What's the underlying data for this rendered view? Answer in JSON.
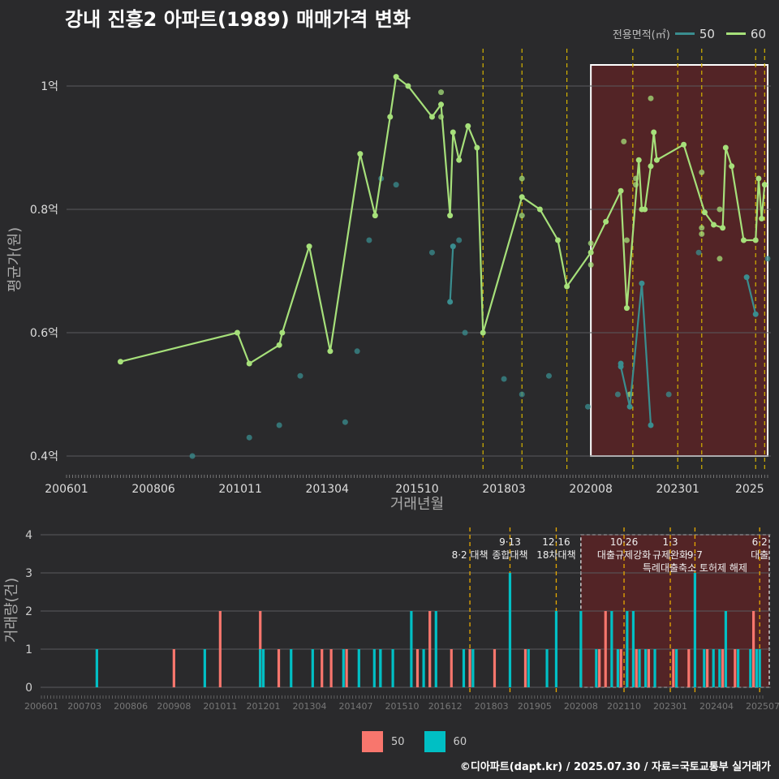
{
  "title": "강내 진흥2 아파트(1989) 매매가격 변화",
  "legend_top": {
    "title": "전용면적(㎡)",
    "items": [
      {
        "label": "50",
        "color": "#3a8d8f"
      },
      {
        "label": "60",
        "color": "#a6e07a"
      }
    ]
  },
  "legend_bottom": {
    "items": [
      {
        "label": "50",
        "color": "#f8766d"
      },
      {
        "label": "60",
        "color": "#00bfc4"
      }
    ]
  },
  "footer": "©디아파트(dapt.kr) / 2025.07.30 / 자료=국토교통부 실거래가",
  "chart_data": [
    {
      "type": "line",
      "xlabel": "거래년월",
      "ylabel": "평균가(원)",
      "x_ticks": [
        "200601",
        "200806",
        "201011",
        "201304",
        "201510",
        "201803",
        "202008",
        "202301",
        "2025"
      ],
      "y_ticks": [
        "0.4억",
        "0.6억",
        "0.8억",
        "1억"
      ],
      "ylim": [
        0.38,
        1.06
      ],
      "xlim": [
        "2006-01",
        "2025-07"
      ],
      "highlight_range": [
        "2020-08",
        "2025-07"
      ],
      "policy_lines": [
        "2017-08",
        "2018-09",
        "2019-12",
        "2021-10",
        "2023-01",
        "2023-09",
        "2025-03",
        "2025-06"
      ],
      "series": [
        {
          "name": "60",
          "color": "#a6e07a",
          "line": [
            [
              "2007-07",
              0.553
            ],
            [
              "2010-10",
              0.6
            ],
            [
              "2011-02",
              0.55
            ],
            [
              "2011-12",
              0.58
            ],
            [
              "2012-01",
              0.6
            ],
            [
              "2012-10",
              0.74
            ],
            [
              "2013-05",
              0.57
            ],
            [
              "2014-03",
              0.89
            ],
            [
              "2014-08",
              0.79
            ],
            [
              "2015-01",
              0.95
            ],
            [
              "2015-03",
              1.015
            ],
            [
              "2015-07",
              1.0
            ],
            [
              "2016-03",
              0.95
            ],
            [
              "2016-06",
              0.97
            ],
            [
              "2016-09",
              0.79
            ],
            [
              "2016-10",
              0.925
            ],
            [
              "2016-12",
              0.88
            ],
            [
              "2017-03",
              0.935
            ],
            [
              "2017-06",
              0.9
            ],
            [
              "2017-08",
              0.6
            ],
            [
              "2018-09",
              0.82
            ],
            [
              "2019-03",
              0.8
            ],
            [
              "2019-09",
              0.75
            ],
            [
              "2019-12",
              0.675
            ],
            [
              "2020-08",
              0.73
            ],
            [
              "2021-01",
              0.78
            ],
            [
              "2021-06",
              0.83
            ],
            [
              "2021-08",
              0.64
            ],
            [
              "2021-12",
              0.88
            ],
            [
              "2022-01",
              0.8
            ],
            [
              "2022-02",
              0.8
            ],
            [
              "2022-04",
              0.87
            ],
            [
              "2022-05",
              0.925
            ],
            [
              "2022-06",
              0.88
            ],
            [
              "2023-03",
              0.905
            ],
            [
              "2023-10",
              0.795
            ],
            [
              "2024-01",
              0.775
            ],
            [
              "2024-04",
              0.77
            ],
            [
              "2024-05",
              0.9
            ],
            [
              "2024-07",
              0.87
            ],
            [
              "2024-11",
              0.75
            ],
            [
              "2025-03",
              0.75
            ],
            [
              "2025-04",
              0.85
            ],
            [
              "2025-05",
              0.785
            ],
            [
              "2025-06",
              0.84
            ]
          ],
          "points": [
            [
              "2016-06",
              0.99
            ],
            [
              "2016-06",
              0.95
            ],
            [
              "2018-09",
              0.85
            ],
            [
              "2018-09",
              0.79
            ],
            [
              "2020-08",
              0.745
            ],
            [
              "2020-08",
              0.71
            ],
            [
              "2021-07",
              0.91
            ],
            [
              "2021-08",
              0.75
            ],
            [
              "2021-09",
              0.5
            ],
            [
              "2021-11",
              0.84
            ],
            [
              "2021-11",
              0.85
            ],
            [
              "2022-04",
              0.98
            ],
            [
              "2023-09",
              0.86
            ],
            [
              "2023-09",
              0.77
            ],
            [
              "2023-09",
              0.76
            ],
            [
              "2024-03",
              0.72
            ],
            [
              "2024-03",
              0.8
            ]
          ]
        },
        {
          "name": "50",
          "color": "#3a8d8f",
          "line": [
            [
              "2016-09",
              0.65
            ],
            [
              "2016-10",
              0.74
            ],
            [
              "2021-06",
              0.55
            ],
            [
              "2021-06",
              0.545
            ],
            [
              "2021-09",
              0.48
            ],
            [
              "2022-01",
              0.68
            ],
            [
              "2022-04",
              0.45
            ],
            [
              "2024-12",
              0.69
            ],
            [
              "2025-03",
              0.63
            ]
          ],
          "points": [
            [
              "2009-07",
              0.4
            ],
            [
              "2011-02",
              0.43
            ],
            [
              "2011-12",
              0.45
            ],
            [
              "2012-07",
              0.53
            ],
            [
              "2013-10",
              0.455
            ],
            [
              "2014-02",
              0.57
            ],
            [
              "2014-06",
              0.75
            ],
            [
              "2014-10",
              0.85
            ],
            [
              "2015-03",
              0.84
            ],
            [
              "2016-03",
              0.73
            ],
            [
              "2017-02",
              0.6
            ],
            [
              "2016-12",
              0.75
            ],
            [
              "2018-03",
              0.525
            ],
            [
              "2018-09",
              0.5
            ],
            [
              "2019-06",
              0.53
            ],
            [
              "2020-07",
              0.48
            ],
            [
              "2021-05",
              0.5
            ],
            [
              "2022-10",
              0.5
            ],
            [
              "2023-08",
              0.73
            ],
            [
              "2025-07",
              0.72
            ]
          ]
        }
      ]
    },
    {
      "type": "bar",
      "ylabel": "거래량(건)",
      "x_ticks": [
        "200601",
        "200703",
        "200806",
        "200908",
        "201011",
        "201201",
        "201304",
        "201407",
        "201510",
        "201612",
        "201803",
        "201905",
        "202008",
        "202110",
        "202301",
        "202404",
        "202507"
      ],
      "y_ticks": [
        "0",
        "1",
        "2",
        "3",
        "4"
      ],
      "ylim": [
        0,
        4.2
      ],
      "highlight_range": [
        "2020-08",
        "2025-07"
      ],
      "policies": [
        {
          "date": "2017-08",
          "label": "8·2 대책",
          "row": 1
        },
        {
          "date": "2018-09",
          "label": "9·13",
          "row": 0
        },
        {
          "date": "2018-09",
          "label": "종합대책",
          "row": 1
        },
        {
          "date": "2019-12",
          "label": "12·16",
          "row": 0
        },
        {
          "date": "2019-12",
          "label": "18차대책",
          "row": 1
        },
        {
          "date": "2021-10",
          "label": "10·26",
          "row": 0
        },
        {
          "date": "2021-10",
          "label": "대출규제강화",
          "row": 1
        },
        {
          "date": "2023-01",
          "label": "1·3",
          "row": 0
        },
        {
          "date": "2023-01",
          "label": "규제완화",
          "row": 1
        },
        {
          "date": "2023-09",
          "label": "9·7",
          "row": 1
        },
        {
          "date": "2023-09",
          "label": "특례대출축소 토허제 해제",
          "row": 2
        },
        {
          "date": "2025-06",
          "label": "6·2",
          "row": 0
        },
        {
          "date": "2025-06",
          "label": "대출",
          "row": 1
        }
      ],
      "series": [
        {
          "name": "50",
          "color": "#f8766d",
          "bars": [
            [
              "2009-08",
              1
            ],
            [
              "2010-11",
              2
            ],
            [
              "2011-12",
              2
            ],
            [
              "2012-06",
              1
            ],
            [
              "2013-08",
              1
            ],
            [
              "2013-11",
              1
            ],
            [
              "2014-04",
              1
            ],
            [
              "2015-03",
              1
            ],
            [
              "2016-03",
              1
            ],
            [
              "2016-07",
              2
            ],
            [
              "2017-02",
              1
            ],
            [
              "2017-08",
              1
            ],
            [
              "2018-04",
              1
            ],
            [
              "2019-02",
              1
            ],
            [
              "2020-08",
              1
            ],
            [
              "2021-02",
              1
            ],
            [
              "2021-04",
              2
            ],
            [
              "2021-09",
              1
            ],
            [
              "2022-02",
              1
            ],
            [
              "2022-06",
              1
            ],
            [
              "2023-02",
              1
            ],
            [
              "2023-07",
              1
            ],
            [
              "2024-01",
              1
            ],
            [
              "2024-06",
              1
            ],
            [
              "2024-10",
              1
            ],
            [
              "2025-04",
              2
            ]
          ]
        },
        {
          "name": "60",
          "color": "#00bfc4",
          "bars": [
            [
              "2007-07",
              1
            ],
            [
              "2010-06",
              1
            ],
            [
              "2011-12",
              1
            ],
            [
              "2012-01",
              1
            ],
            [
              "2012-10",
              1
            ],
            [
              "2013-05",
              1
            ],
            [
              "2014-03",
              1
            ],
            [
              "2014-08",
              1
            ],
            [
              "2015-01",
              1
            ],
            [
              "2015-03",
              1
            ],
            [
              "2015-07",
              1
            ],
            [
              "2016-01",
              2
            ],
            [
              "2016-05",
              1
            ],
            [
              "2016-09",
              2
            ],
            [
              "2017-06",
              1
            ],
            [
              "2017-09",
              1
            ],
            [
              "2018-09",
              3
            ],
            [
              "2019-03",
              1
            ],
            [
              "2019-09",
              1
            ],
            [
              "2019-12",
              2
            ],
            [
              "2020-08",
              2
            ],
            [
              "2021-01",
              1
            ],
            [
              "2021-06",
              2
            ],
            [
              "2021-08",
              1
            ],
            [
              "2021-11",
              2
            ],
            [
              "2022-01",
              2
            ],
            [
              "2022-03",
              1
            ],
            [
              "2022-05",
              1
            ],
            [
              "2022-08",
              1
            ],
            [
              "2023-03",
              1
            ],
            [
              "2023-09",
              3
            ],
            [
              "2023-12",
              1
            ],
            [
              "2024-03",
              1
            ],
            [
              "2024-05",
              1
            ],
            [
              "2024-07",
              2
            ],
            [
              "2024-11",
              1
            ],
            [
              "2025-03",
              1
            ],
            [
              "2025-05",
              1
            ],
            [
              "2025-06",
              1
            ]
          ]
        }
      ]
    }
  ]
}
